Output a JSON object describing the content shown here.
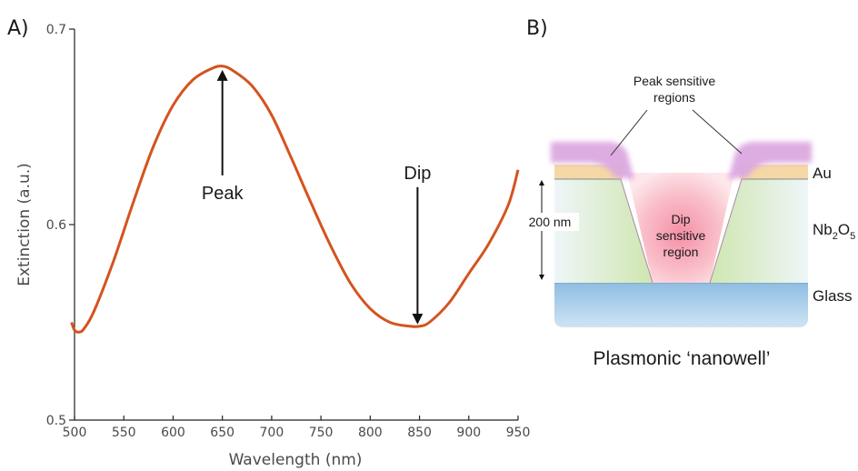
{
  "panel_a": {
    "label": "A)"
  },
  "panel_b": {
    "label": "B)"
  },
  "chart_data": {
    "type": "line",
    "title": "",
    "xlabel": "Wavelength (nm)",
    "ylabel": "Extinction (a.u.)",
    "xlim": [
      500,
      950
    ],
    "ylim": [
      0.5,
      0.7
    ],
    "xticks": [
      500,
      550,
      600,
      650,
      700,
      750,
      800,
      850,
      900,
      950
    ],
    "yticks": [
      0.5,
      0.6,
      0.7
    ],
    "grid": false,
    "series": [
      {
        "color": "#d4531f",
        "x": [
          497,
          500,
          505,
          510,
          520,
          540,
          560,
          580,
          600,
          620,
          640,
          650,
          660,
          680,
          700,
          720,
          740,
          760,
          780,
          800,
          820,
          840,
          850,
          860,
          880,
          900,
          920,
          940,
          950
        ],
        "y": [
          0.55,
          0.546,
          0.545,
          0.547,
          0.556,
          0.582,
          0.612,
          0.64,
          0.661,
          0.674,
          0.68,
          0.681,
          0.679,
          0.671,
          0.656,
          0.634,
          0.611,
          0.589,
          0.57,
          0.557,
          0.55,
          0.548,
          0.548,
          0.55,
          0.56,
          0.575,
          0.59,
          0.61,
          0.628
        ]
      }
    ],
    "annotations": [
      {
        "text": "Peak",
        "x": 650,
        "y": 0.681,
        "arrow": "up"
      },
      {
        "text": "Dip",
        "x": 848,
        "y": 0.548,
        "arrow": "down"
      }
    ]
  },
  "diagram": {
    "caption": "Plasmonic ‘nanowell’",
    "peak_label": [
      "Peak sensitive",
      "regions"
    ],
    "dip_label": [
      "Dip",
      "sensitive",
      "region"
    ],
    "thickness_label": "200 nm",
    "layers": {
      "au": "Au",
      "nb_main": "Nb",
      "nb_sub1": "2",
      "nb_o": "O",
      "nb_sub2": "5",
      "glass": "Glass"
    },
    "colors": {
      "au": "#f6d7a6",
      "nb": "#d9ebc1",
      "glass": "#9ec8e6",
      "peak": "#dba6df",
      "dip": "#f7a7b7"
    }
  }
}
